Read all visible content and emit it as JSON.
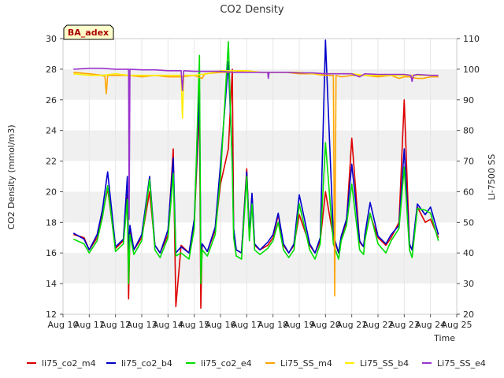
{
  "chart_data": {
    "type": "line",
    "title": "CO2 Density",
    "xlabel": "Time",
    "ylabel": "CO2 Density (mmol/m3)",
    "y2label": "LI-7500 SS",
    "badge": "BA_adex",
    "xlim": [
      10,
      25
    ],
    "ylim": [
      12,
      30
    ],
    "y2lim": [
      20,
      110
    ],
    "x_ticks": [
      {
        "v": 10,
        "label": "Aug 10"
      },
      {
        "v": 11,
        "label": "Aug 11"
      },
      {
        "v": 12,
        "label": "Aug 12"
      },
      {
        "v": 13,
        "label": "Aug 13"
      },
      {
        "v": 14,
        "label": "Aug 14"
      },
      {
        "v": 15,
        "label": "Aug 15"
      },
      {
        "v": 16,
        "label": "Aug 16"
      },
      {
        "v": 17,
        "label": "Aug 17"
      },
      {
        "v": 18,
        "label": "Aug 18"
      },
      {
        "v": 19,
        "label": "Aug 19"
      },
      {
        "v": 20,
        "label": "Aug 20"
      },
      {
        "v": 21,
        "label": "Aug 21"
      },
      {
        "v": 22,
        "label": "Aug 22"
      },
      {
        "v": 23,
        "label": "Aug 23"
      },
      {
        "v": 24,
        "label": "Aug 24"
      },
      {
        "v": 25,
        "label": "Aug 25"
      }
    ],
    "y_ticks": [
      {
        "v": 12,
        "label": "12"
      },
      {
        "v": 14,
        "label": "14"
      },
      {
        "v": 16,
        "label": "16"
      },
      {
        "v": 18,
        "label": "18"
      },
      {
        "v": 20,
        "label": "20"
      },
      {
        "v": 22,
        "label": "22"
      },
      {
        "v": 24,
        "label": "24"
      },
      {
        "v": 26,
        "label": "26"
      },
      {
        "v": 28,
        "label": "28"
      },
      {
        "v": 30,
        "label": "30"
      }
    ],
    "y2_ticks": [
      {
        "v": 20,
        "label": "20"
      },
      {
        "v": 30,
        "label": "30"
      },
      {
        "v": 40,
        "label": "40"
      },
      {
        "v": 50,
        "label": "50"
      },
      {
        "v": 60,
        "label": "60"
      },
      {
        "v": 70,
        "label": "70"
      },
      {
        "v": 80,
        "label": "80"
      },
      {
        "v": 90,
        "label": "90"
      },
      {
        "v": 100,
        "label": "100"
      },
      {
        "v": 110,
        "label": "110"
      }
    ],
    "bands": [
      [
        14,
        16
      ],
      [
        18,
        20
      ],
      [
        22,
        24
      ],
      [
        26,
        28
      ]
    ],
    "series": [
      {
        "name": "li75_co2_m4",
        "color": "#dd0000",
        "axis": "left",
        "x": [
          10.4,
          10.8,
          11.0,
          11.3,
          11.5,
          11.7,
          12.0,
          12.3,
          12.45,
          12.5,
          12.55,
          12.7,
          13.0,
          13.3,
          13.5,
          13.7,
          14.0,
          14.2,
          14.3,
          14.5,
          14.8,
          15.0,
          15.2,
          15.25,
          15.3,
          15.5,
          15.8,
          16.0,
          16.3,
          16.45,
          16.5,
          16.6,
          16.8,
          17.0,
          17.1,
          17.2,
          17.3,
          17.5,
          17.8,
          18.0,
          18.2,
          18.4,
          18.6,
          18.8,
          19.0,
          19.4,
          19.6,
          19.8,
          20.0,
          20.3,
          20.5,
          20.55,
          20.6,
          20.8,
          21.0,
          21.3,
          21.45,
          21.5,
          21.7,
          22.0,
          22.3,
          22.5,
          22.8,
          23.0,
          23.2,
          23.3,
          23.5,
          23.8,
          24.0,
          24.3
        ],
        "y": [
          17.2,
          17.0,
          16.2,
          17.0,
          18.5,
          20.2,
          16.3,
          16.8,
          19.8,
          13.0,
          17.5,
          16.2,
          17.0,
          20.0,
          16.5,
          16.0,
          17.2,
          22.8,
          12.5,
          16.5,
          16.0,
          18.0,
          25.5,
          12.4,
          16.6,
          16.1,
          17.5,
          20.5,
          22.8,
          28.0,
          17.5,
          16.2,
          16.0,
          21.5,
          17.0,
          19.8,
          16.5,
          16.2,
          16.5,
          17.0,
          18.5,
          16.5,
          16.0,
          16.5,
          18.5,
          16.5,
          16.0,
          16.8,
          20.0,
          17.0,
          16.0,
          16.5,
          17.0,
          18.0,
          23.5,
          16.7,
          16.4,
          17.0,
          18.5,
          17.0,
          16.5,
          17.0,
          18.0,
          26.0,
          16.5,
          16.2,
          19.0,
          18.0,
          18.2,
          17.0
        ]
      },
      {
        "name": "li75_co2_b4",
        "color": "#0000cc",
        "axis": "left",
        "x": [
          10.4,
          10.8,
          11.0,
          11.3,
          11.5,
          11.7,
          12.0,
          12.3,
          12.45,
          12.5,
          12.55,
          12.7,
          13.0,
          13.3,
          13.5,
          13.7,
          14.0,
          14.2,
          14.3,
          14.5,
          14.8,
          15.0,
          15.2,
          15.25,
          15.3,
          15.5,
          15.8,
          16.0,
          16.3,
          16.45,
          16.5,
          16.6,
          16.8,
          17.0,
          17.1,
          17.2,
          17.3,
          17.5,
          17.8,
          18.0,
          18.2,
          18.4,
          18.6,
          18.8,
          19.0,
          19.4,
          19.6,
          19.8,
          20.0,
          20.3,
          20.5,
          20.55,
          20.6,
          20.8,
          21.0,
          21.3,
          21.45,
          21.5,
          21.7,
          22.0,
          22.3,
          22.5,
          22.8,
          23.0,
          23.2,
          23.3,
          23.5,
          23.8,
          24.0,
          24.3
        ],
        "y": [
          17.3,
          16.9,
          16.2,
          17.2,
          18.8,
          21.3,
          16.4,
          16.9,
          21.0,
          16.2,
          17.8,
          16.2,
          17.2,
          21.0,
          16.5,
          16.0,
          17.5,
          22.2,
          16.0,
          16.4,
          16.0,
          18.2,
          26.5,
          16.0,
          16.6,
          16.1,
          17.7,
          21.8,
          28.5,
          22.0,
          17.6,
          16.2,
          16.0,
          21.3,
          17.2,
          19.9,
          16.6,
          16.2,
          16.7,
          17.2,
          18.6,
          16.6,
          16.0,
          16.6,
          19.8,
          16.6,
          16.0,
          17.0,
          29.9,
          17.2,
          16.0,
          16.6,
          17.1,
          18.2,
          21.8,
          16.8,
          16.4,
          17.2,
          19.3,
          17.1,
          16.6,
          17.2,
          17.8,
          22.8,
          16.6,
          16.2,
          19.2,
          18.5,
          19.0,
          17.2
        ]
      },
      {
        "name": "li75_co2_e4",
        "color": "#00dd00",
        "axis": "left",
        "x": [
          10.4,
          10.8,
          11.0,
          11.3,
          11.5,
          11.7,
          12.0,
          12.3,
          12.45,
          12.5,
          12.55,
          12.7,
          13.0,
          13.3,
          13.5,
          13.7,
          14.0,
          14.2,
          14.3,
          14.5,
          14.8,
          15.0,
          15.2,
          15.25,
          15.3,
          15.5,
          15.8,
          16.0,
          16.3,
          16.45,
          16.5,
          16.6,
          16.8,
          17.0,
          17.1,
          17.2,
          17.3,
          17.5,
          17.8,
          18.0,
          18.2,
          18.4,
          18.6,
          18.8,
          19.0,
          19.4,
          19.6,
          19.8,
          20.0,
          20.3,
          20.5,
          20.55,
          20.6,
          20.8,
          21.0,
          21.3,
          21.45,
          21.5,
          21.7,
          22.0,
          22.3,
          22.5,
          22.8,
          23.0,
          23.2,
          23.3,
          23.5,
          23.8,
          24.0,
          24.3
        ],
        "y": [
          16.9,
          16.6,
          16.0,
          16.8,
          18.3,
          20.4,
          16.1,
          16.6,
          19.5,
          14.0,
          17.2,
          15.9,
          16.8,
          20.8,
          16.2,
          15.7,
          17.0,
          21.2,
          15.8,
          16.0,
          15.6,
          17.6,
          28.9,
          14.0,
          16.2,
          15.8,
          17.2,
          21.0,
          29.8,
          21.5,
          17.0,
          15.8,
          15.6,
          21.0,
          16.8,
          19.2,
          16.2,
          15.9,
          16.3,
          16.8,
          18.0,
          16.2,
          15.7,
          16.2,
          19.2,
          16.2,
          15.6,
          16.6,
          23.2,
          16.6,
          15.6,
          16.2,
          16.8,
          17.8,
          20.5,
          16.2,
          15.9,
          16.8,
          18.6,
          16.6,
          16.0,
          16.8,
          17.6,
          21.6,
          16.2,
          15.7,
          18.9,
          18.8,
          18.6,
          16.8
        ]
      },
      {
        "name": "Li75_SS_m4",
        "color": "#ffa500",
        "axis": "right",
        "x": [
          10.4,
          11.0,
          11.5,
          11.6,
          11.65,
          11.7,
          12.0,
          12.5,
          13.0,
          13.5,
          14.0,
          14.5,
          15.0,
          15.3,
          15.4,
          16.0,
          16.5,
          17.0,
          17.5,
          18.0,
          18.5,
          19.0,
          19.5,
          20.0,
          20.3,
          20.35,
          20.4,
          20.6,
          21.0,
          21.5,
          22.0,
          22.5,
          22.8,
          23.0,
          23.2,
          23.5,
          23.7,
          24.0,
          24.3
        ],
        "y": [
          99.0,
          98.5,
          98.0,
          97.5,
          92.0,
          98.0,
          98.0,
          98.0,
          97.5,
          98.0,
          97.5,
          97.5,
          98.0,
          97.0,
          98.5,
          99.0,
          99.0,
          99.5,
          99.0,
          99.0,
          99.0,
          98.5,
          98.5,
          98.0,
          98.0,
          26.0,
          98.0,
          97.5,
          98.0,
          98.0,
          97.5,
          98.0,
          97.0,
          97.5,
          97.5,
          97.0,
          97.0,
          97.5,
          97.5
        ]
      },
      {
        "name": "Li75_SS_b4",
        "color": "#ffee00",
        "axis": "right",
        "x": [
          10.4,
          11.0,
          11.5,
          12.0,
          12.5,
          13.0,
          13.5,
          14.0,
          14.5,
          14.55,
          14.6,
          15.0,
          15.5,
          16.0,
          16.5,
          17.0,
          17.5,
          18.0,
          18.5,
          19.0,
          19.5,
          20.0,
          20.5,
          21.0,
          21.5,
          22.0,
          22.5,
          23.0,
          23.5,
          24.0,
          24.3
        ],
        "y": [
          98.5,
          98.0,
          98.0,
          98.5,
          98.0,
          98.0,
          98.0,
          98.0,
          98.0,
          84.0,
          98.0,
          98.0,
          98.5,
          99.5,
          99.5,
          99.5,
          99.0,
          99.0,
          99.0,
          99.0,
          98.5,
          98.5,
          98.5,
          98.5,
          98.0,
          98.0,
          98.0,
          98.0,
          98.0,
          98.0,
          98.0
        ]
      },
      {
        "name": "Li75_SS_e4",
        "color": "#9933cc",
        "axis": "right",
        "x": [
          10.4,
          11.0,
          11.5,
          12.0,
          12.5,
          12.52,
          12.55,
          13.0,
          13.5,
          14.0,
          14.5,
          14.55,
          14.6,
          15.0,
          15.5,
          16.0,
          16.5,
          17.0,
          17.5,
          17.8,
          17.82,
          17.85,
          18.0,
          18.5,
          19.0,
          19.5,
          20.0,
          20.5,
          21.0,
          21.3,
          21.5,
          22.0,
          22.5,
          23.0,
          23.25,
          23.3,
          23.35,
          23.5,
          24.0,
          24.3
        ],
        "y": [
          100.0,
          100.3,
          100.3,
          100.0,
          100.0,
          51.0,
          100.0,
          99.8,
          99.8,
          99.5,
          99.5,
          93.0,
          99.5,
          99.3,
          99.3,
          99.3,
          99.0,
          99.0,
          99.0,
          99.0,
          97.0,
          99.0,
          99.0,
          99.0,
          98.8,
          98.8,
          98.5,
          98.5,
          98.5,
          97.5,
          98.5,
          98.3,
          98.3,
          98.3,
          98.0,
          96.0,
          98.0,
          98.3,
          98.0,
          98.0
        ]
      }
    ]
  }
}
